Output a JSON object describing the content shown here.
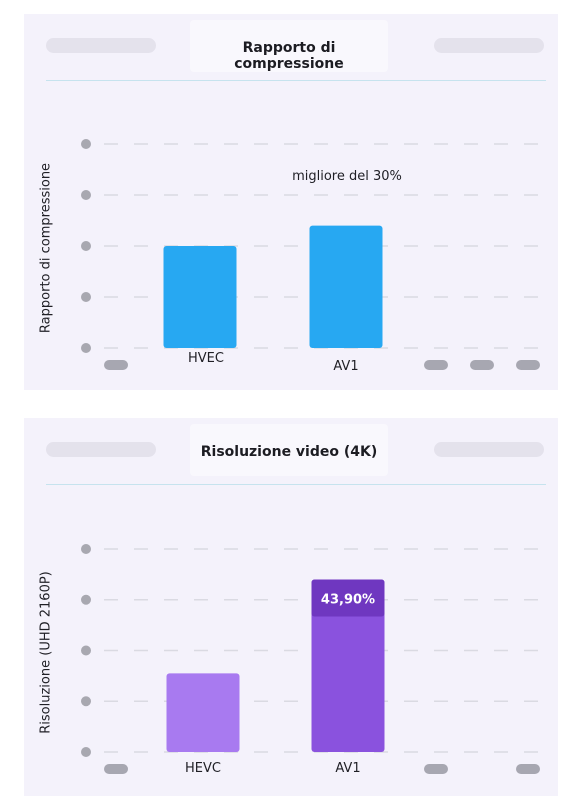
{
  "colors": {
    "panel_bg": "#f4f2fb",
    "blue_bar": "#27a8f2",
    "purple_light": "#a87af0",
    "purple_dark": "#8a52de",
    "purple_cap": "#6f37c0"
  },
  "chart_data": [
    {
      "type": "bar",
      "title": "Rapporto di compressione",
      "xlabel": "",
      "ylabel": "Rapporto di compressione",
      "categories": [
        "HVEC",
        "AV1"
      ],
      "values": [
        2.0,
        2.4
      ],
      "ylim": [
        0,
        4
      ],
      "grid": true,
      "annotations": [
        "migliore del 30%"
      ]
    },
    {
      "type": "bar",
      "title": "Risoluzione video (4K)",
      "xlabel": "",
      "ylabel": "Risoluzione (UHD 2160P)",
      "categories": [
        "HEVC",
        "AV1"
      ],
      "values": [
        1.55,
        3.4
      ],
      "ylim": [
        0,
        4
      ],
      "grid": true,
      "value_labels": [
        "",
        "43,90%"
      ]
    }
  ]
}
